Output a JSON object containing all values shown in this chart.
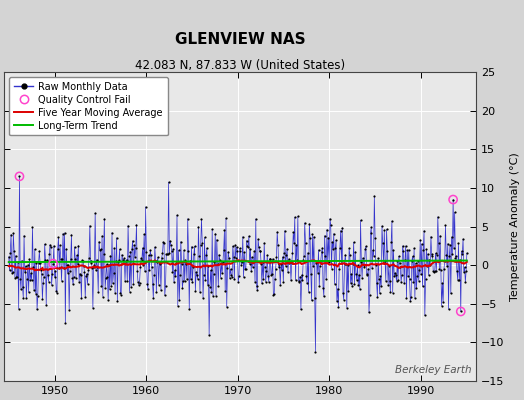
{
  "title": "GLENVIEW NAS",
  "subtitle": "42.083 N, 87.833 W (United States)",
  "ylabel": "Temperature Anomaly (°C)",
  "watermark": "Berkeley Earth",
  "year_start": 1945,
  "year_end": 1995.5,
  "ylim": [
    -15,
    25
  ],
  "yticks": [
    -15,
    -10,
    -5,
    0,
    5,
    10,
    15,
    20,
    25
  ],
  "bg_color": "#d4d4d4",
  "plot_bg_color": "#e8e8e8",
  "raw_line_color": "#3333cc",
  "raw_dot_color": "#000000",
  "ma_color": "#dd0000",
  "trend_color": "#00bb00",
  "qc_color": "#ff44cc",
  "seed": 42,
  "title_fontsize": 11,
  "subtitle_fontsize": 8.5,
  "tick_fontsize": 8,
  "ylabel_fontsize": 8
}
